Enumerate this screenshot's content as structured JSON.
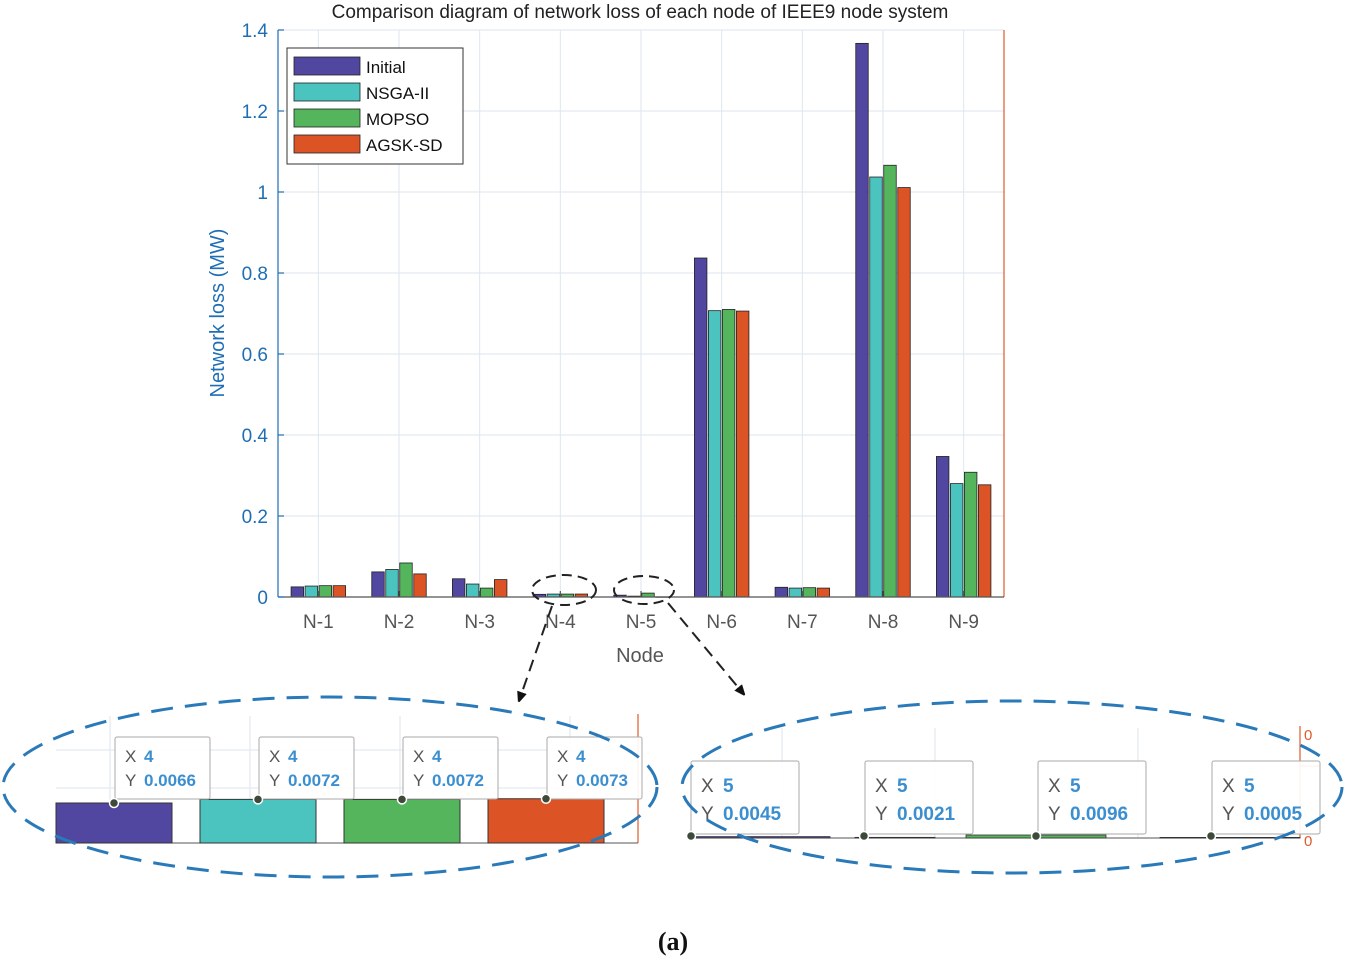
{
  "chart_data": {
    "type": "bar",
    "title": "Comparison diagram of network loss of each node of IEEE9 node system",
    "xlabel": "Node",
    "ylabel": "Network loss (MW)",
    "ylim": [
      0,
      1.4
    ],
    "yticks": [
      "0",
      "0.2",
      "0.4",
      "0.6",
      "0.8",
      "1",
      "1.2",
      "1.4"
    ],
    "grid": true,
    "legend_position": "top-left",
    "categories": [
      "N-1",
      "N-2",
      "N-3",
      "N-4",
      "N-5",
      "N-6",
      "N-7",
      "N-8",
      "N-9"
    ],
    "series": [
      {
        "name": "Initial",
        "color": "#5147a0",
        "values": [
          0.025,
          0.062,
          0.045,
          0.0066,
          0.0045,
          0.837,
          0.024,
          1.367,
          0.347
        ]
      },
      {
        "name": "NSGA-II",
        "color": "#4bc4c0",
        "values": [
          0.027,
          0.068,
          0.032,
          0.0072,
          0.0021,
          0.707,
          0.022,
          1.037,
          0.28
        ]
      },
      {
        "name": "MOPSO",
        "color": "#55b55c",
        "values": [
          0.028,
          0.084,
          0.022,
          0.0072,
          0.0096,
          0.71,
          0.023,
          1.066,
          0.308
        ]
      },
      {
        "name": "AGSK-SD",
        "color": "#dc5426",
        "values": [
          0.028,
          0.057,
          0.043,
          0.0073,
          0.0005,
          0.706,
          0.022,
          1.011,
          0.277
        ]
      }
    ]
  },
  "zoom_left": {
    "tooltips": [
      {
        "x_label": "X",
        "x_value": "4",
        "y_label": "Y",
        "y_value": "0.0066"
      },
      {
        "x_label": "X",
        "x_value": "4",
        "y_label": "Y",
        "y_value": "0.0072"
      },
      {
        "x_label": "X",
        "x_value": "4",
        "y_label": "Y",
        "y_value": "0.0072"
      },
      {
        "x_label": "X",
        "x_value": "4",
        "y_label": "Y",
        "y_value": "0.0073"
      }
    ]
  },
  "zoom_right": {
    "tooltips": [
      {
        "x_label": "X",
        "x_value": "5",
        "y_label": "Y",
        "y_value": "0.0045"
      },
      {
        "x_label": "X",
        "x_value": "5",
        "y_label": "Y",
        "y_value": "0.0021"
      },
      {
        "x_label": "X",
        "x_value": "5",
        "y_label": "Y",
        "y_value": "0.0096"
      },
      {
        "x_label": "X",
        "x_value": "5",
        "y_label": "Y",
        "y_value": "0.0005"
      }
    ],
    "axis_glyph": "0"
  },
  "caption": "(a)",
  "colors": {
    "axis": "#1f6eb5",
    "right_axis": "#e05a2b",
    "grid": "#dde6ef",
    "annotation": "#2a7ab9",
    "tooltip_value": "#3b8fd0"
  }
}
